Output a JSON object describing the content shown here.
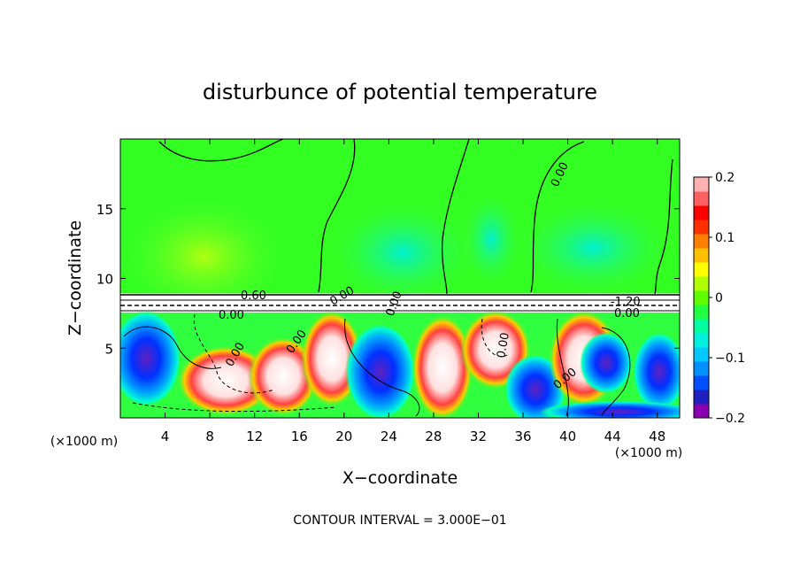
{
  "chart_data": {
    "type": "heatmap",
    "title": "disturbunce of potential temperature",
    "xlabel": "X−coordinate",
    "ylabel": "Z−coordinate",
    "x_unit": "(×1000 m)",
    "y_unit": "(×1000 m)",
    "xlim": [
      0,
      50
    ],
    "ylim": [
      0,
      20
    ],
    "x_ticks": [
      4,
      8,
      12,
      16,
      20,
      24,
      28,
      32,
      36,
      40,
      44,
      48
    ],
    "y_ticks": [
      5,
      10,
      15
    ],
    "colorbar": {
      "range": [
        -0.2,
        0.2
      ],
      "ticks": [
        {
          "value": 0.2,
          "label": "0.2"
        },
        {
          "value": 0.1,
          "label": "0.1"
        },
        {
          "value": 0,
          "label": "0"
        },
        {
          "value": -0.1,
          "label": "−0.1"
        },
        {
          "value": -0.2,
          "label": "−0.2"
        }
      ],
      "colors": [
        "#8a00b0",
        "#2020c0",
        "#0050ff",
        "#0090ff",
        "#00c8ff",
        "#00f0e0",
        "#00ffa0",
        "#20ff40",
        "#60ff00",
        "#b0ff00",
        "#ffff00",
        "#ffc000",
        "#ff8000",
        "#ff3000",
        "#ff0000",
        "#ff6060",
        "#ffb0b0"
      ]
    },
    "contour_labels": [
      "0.00",
      "0.00",
      "0.60",
      "0.00",
      "0.00",
      "0.00",
      "0.00",
      "0.00",
      "0.00",
      "-1.20",
      "0.00"
    ],
    "contour_interval": "CONTOUR INTERVAL = 3.000E−01"
  }
}
